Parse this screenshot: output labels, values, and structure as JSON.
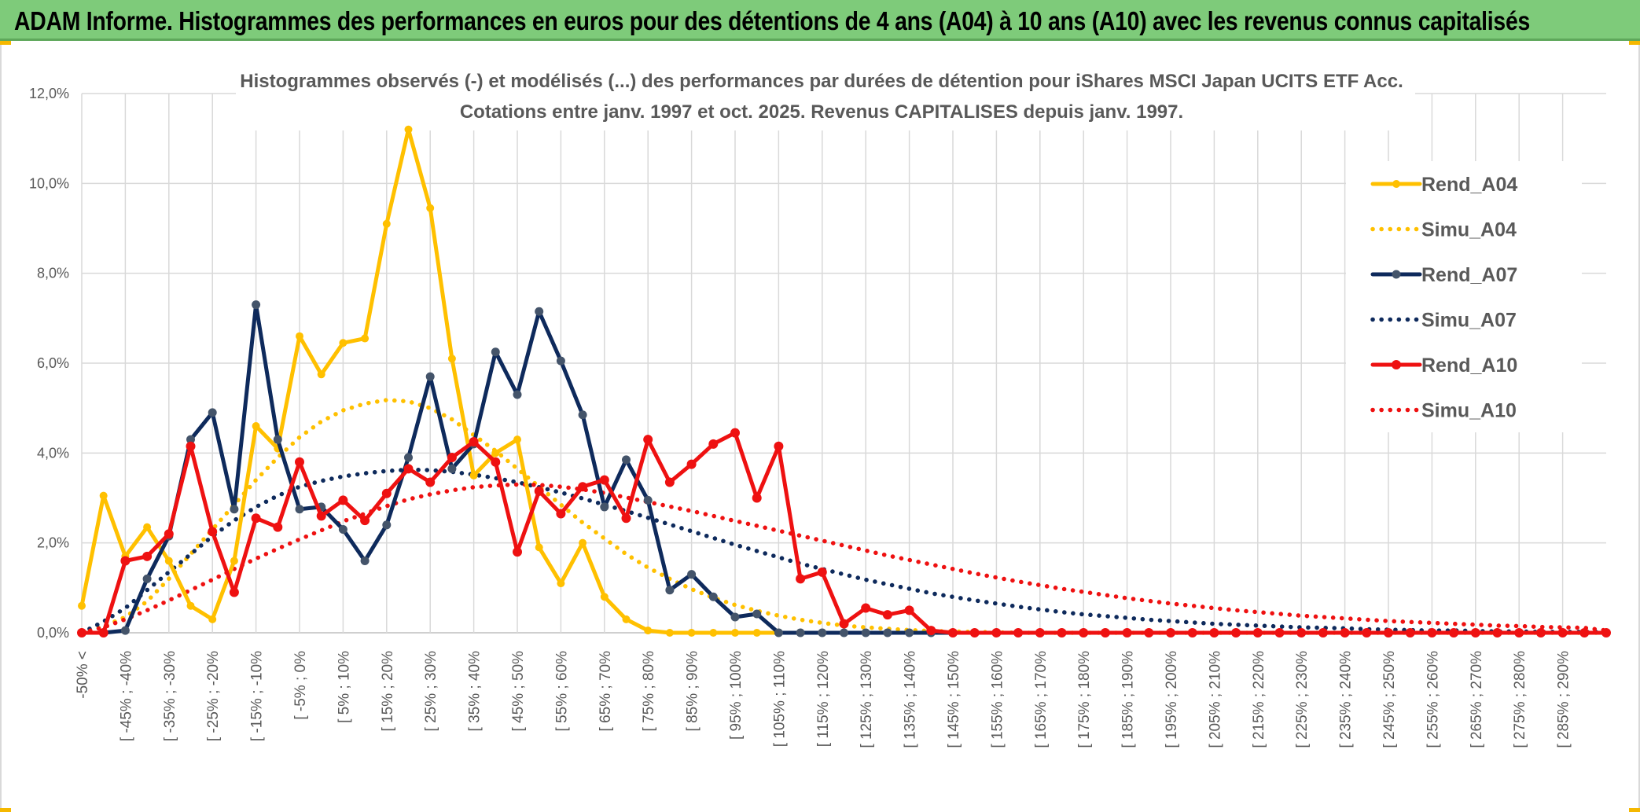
{
  "banner": {
    "title": "ADAM Informe. Histogrammes des performances en euros pour des détentions de 4 ans (A04) à 10 ans (A10) avec les revenus connus capitalisés"
  },
  "chart_data": {
    "type": "line",
    "title_lines": [
      "Histogrammes observés (-) et modélisés (...) des performances par durées de détention pour iShares MSCI Japan UCITS ETF Acc.",
      "Cotations entre janv. 1997 et oct. 2025. Revenus CAPITALISES depuis janv. 1997."
    ],
    "xlabel": "",
    "ylabel": "",
    "ylim": [
      0,
      12
    ],
    "yticks": [
      "0,0%",
      "2,0%",
      "4,0%",
      "6,0%",
      "8,0%",
      "10,0%",
      "12,0%"
    ],
    "grid": true,
    "legend_position": "right",
    "category_labels": [
      "-50% <",
      "[ -45% ; -40%",
      "[ -35% ; -30%",
      "[ -25% ; -20%",
      "[ -15% ; -10%",
      "[ -5% ; 0%",
      "[ 5% ; 10%",
      "[ 15% ; 20%",
      "[ 25% ; 30%",
      "[ 35% ; 40%",
      "[ 45% ; 50%",
      "[ 55% ; 60%",
      "[ 65% ; 70%",
      "[ 75% ; 80%",
      "[ 85% ; 90%",
      "[ 95% ; 100%",
      "[ 105% ; 110%",
      "[ 115% ; 120%",
      "[ 125% ; 130%",
      "[ 135% ; 140%",
      "[ 145% ; 150%",
      "[ 155% ; 160%",
      "[ 165% ; 170%",
      "[ 175% ; 180%",
      "[ 185% ; 190%",
      "[ 195% ; 200%",
      "[ 205% ; 210%",
      "[ 215% ; 220%",
      "[ 225% ; 230%",
      "[ 235% ; 240%",
      "[ 245% ; 250%",
      "[ 255% ; 260%",
      "[ 265% ; 270%",
      "[ 275% ; 280%",
      "[ 285% ; 290%"
    ],
    "series": [
      {
        "name": "Rend_A04",
        "style": "solid",
        "color": "#ffc000",
        "values": [
          0.6,
          3.05,
          1.7,
          2.35,
          1.6,
          0.6,
          0.3,
          1.6,
          4.6,
          4.1,
          6.6,
          5.75,
          6.45,
          6.55,
          9.1,
          11.2,
          9.45,
          6.1,
          3.5,
          4.0,
          4.3,
          1.9,
          1.1,
          2.0,
          0.8,
          0.3,
          0.05,
          0,
          0,
          0,
          0,
          0,
          0,
          0,
          0,
          0,
          0,
          0,
          0,
          0,
          0,
          0,
          0,
          0,
          0,
          0,
          0,
          0,
          0,
          0,
          0,
          0,
          0,
          0,
          0,
          0,
          0,
          0,
          0,
          0,
          0,
          0,
          0,
          0,
          0,
          0,
          0,
          0,
          0,
          0,
          0
        ]
      },
      {
        "name": "Simu_A04",
        "style": "dotted",
        "color": "#ffc000",
        "values": [
          0,
          0.14,
          0.35,
          0.7,
          1.2,
          1.75,
          2.3,
          2.85,
          3.4,
          3.9,
          4.35,
          4.7,
          4.95,
          5.1,
          5.18,
          5.15,
          5.0,
          4.75,
          4.4,
          4.05,
          3.65,
          3.25,
          2.85,
          2.45,
          2.1,
          1.75,
          1.45,
          1.2,
          0.97,
          0.78,
          0.62,
          0.49,
          0.38,
          0.29,
          0.22,
          0.16,
          0.12,
          0.09,
          0.06,
          0.04,
          0.03,
          0.02,
          0.01,
          0,
          0,
          0,
          0,
          0,
          0,
          0,
          0,
          0,
          0,
          0,
          0,
          0,
          0,
          0,
          0,
          0,
          0,
          0,
          0,
          0,
          0,
          0,
          0,
          0,
          0,
          0,
          0
        ]
      },
      {
        "name": "Rend_A07",
        "style": "solid",
        "color": "#0e2a5c",
        "values": [
          0,
          0,
          0.05,
          1.2,
          2.15,
          4.3,
          4.9,
          2.75,
          7.3,
          4.3,
          2.75,
          2.8,
          2.3,
          1.6,
          2.4,
          3.9,
          5.7,
          3.65,
          4.2,
          6.25,
          5.3,
          7.15,
          6.05,
          4.85,
          2.8,
          3.85,
          2.95,
          0.95,
          1.3,
          0.8,
          0.35,
          0.42,
          0,
          0,
          0,
          0,
          0,
          0,
          0,
          0,
          0,
          0,
          0,
          0,
          0,
          0,
          0,
          0,
          0,
          0,
          0,
          0,
          0,
          0,
          0,
          0,
          0,
          0,
          0,
          0,
          0,
          0,
          0,
          0,
          0,
          0,
          0,
          0,
          0,
          0,
          0
        ]
      },
      {
        "name": "Simu_A07",
        "style": "dotted",
        "color": "#0e2a5c",
        "values": [
          0,
          0.25,
          0.55,
          0.95,
          1.35,
          1.75,
          2.15,
          2.5,
          2.8,
          3.05,
          3.25,
          3.38,
          3.48,
          3.55,
          3.6,
          3.63,
          3.62,
          3.58,
          3.52,
          3.44,
          3.35,
          3.24,
          3.12,
          2.99,
          2.85,
          2.71,
          2.56,
          2.41,
          2.26,
          2.11,
          1.96,
          1.82,
          1.68,
          1.54,
          1.42,
          1.3,
          1.18,
          1.08,
          0.98,
          0.88,
          0.8,
          0.72,
          0.65,
          0.58,
          0.52,
          0.46,
          0.41,
          0.37,
          0.33,
          0.29,
          0.26,
          0.23,
          0.2,
          0.18,
          0.16,
          0.14,
          0.12,
          0.11,
          0.1,
          0.08,
          0.07,
          0.06,
          0.05,
          0.05,
          0.04,
          0.03,
          0.03,
          0.02,
          0.02,
          0.02,
          0.01
        ]
      },
      {
        "name": "Rend_A10",
        "style": "solid",
        "color": "#ee1111",
        "values": [
          0,
          0,
          1.6,
          1.7,
          2.2,
          4.15,
          2.25,
          0.9,
          2.55,
          2.35,
          3.8,
          2.6,
          2.95,
          2.5,
          3.1,
          3.65,
          3.35,
          3.9,
          4.25,
          3.8,
          1.8,
          3.15,
          2.65,
          3.25,
          3.4,
          2.55,
          4.3,
          3.35,
          3.75,
          4.2,
          4.45,
          3.0,
          4.15,
          1.2,
          1.35,
          0.2,
          0.55,
          0.4,
          0.5,
          0.05,
          0,
          0,
          0,
          0,
          0,
          0,
          0,
          0,
          0,
          0,
          0,
          0,
          0,
          0,
          0,
          0,
          0,
          0,
          0,
          0,
          0,
          0,
          0,
          0,
          0,
          0,
          0,
          0,
          0,
          0,
          0
        ]
      },
      {
        "name": "Simu_A10",
        "style": "dotted",
        "color": "#ee1111",
        "values": [
          0,
          0.12,
          0.3,
          0.5,
          0.72,
          0.95,
          1.18,
          1.42,
          1.65,
          1.87,
          2.08,
          2.28,
          2.48,
          2.65,
          2.82,
          2.97,
          3.08,
          3.17,
          3.24,
          3.28,
          3.3,
          3.29,
          3.25,
          3.19,
          3.11,
          3.01,
          2.91,
          2.81,
          2.71,
          2.6,
          2.49,
          2.38,
          2.27,
          2.16,
          2.05,
          1.94,
          1.83,
          1.72,
          1.62,
          1.52,
          1.42,
          1.32,
          1.23,
          1.14,
          1.06,
          0.98,
          0.91,
          0.84,
          0.77,
          0.71,
          0.65,
          0.6,
          0.55,
          0.5,
          0.46,
          0.42,
          0.38,
          0.35,
          0.32,
          0.29,
          0.26,
          0.24,
          0.22,
          0.2,
          0.18,
          0.16,
          0.15,
          0.13,
          0.12,
          0.11,
          0.05
        ]
      }
    ]
  }
}
